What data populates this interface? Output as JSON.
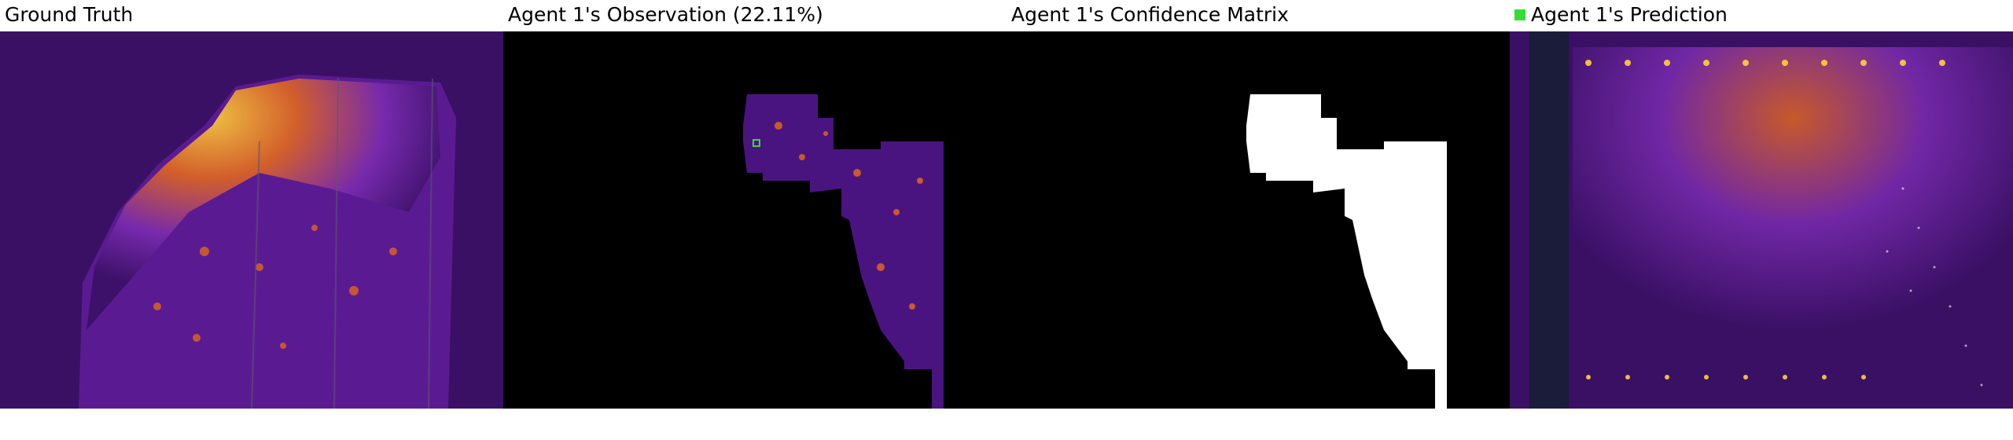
{
  "panels": [
    {
      "title": "Ground Truth"
    },
    {
      "title": "Agent 1's Observation (22.11%)"
    },
    {
      "title": "Agent 1's Confidence Matrix"
    },
    {
      "title": "Agent 1's Prediction",
      "legend_color": "#33dd33"
    }
  ],
  "colors": {
    "page_background": "#ffffff",
    "map_dark": "#3a1065",
    "map_mid": "#7a2bb0",
    "map_hot": "#e0661f",
    "map_bright": "#ffd23a",
    "mask_black": "#000000",
    "mask_white": "#ffffff",
    "marker": "#33dd33"
  }
}
